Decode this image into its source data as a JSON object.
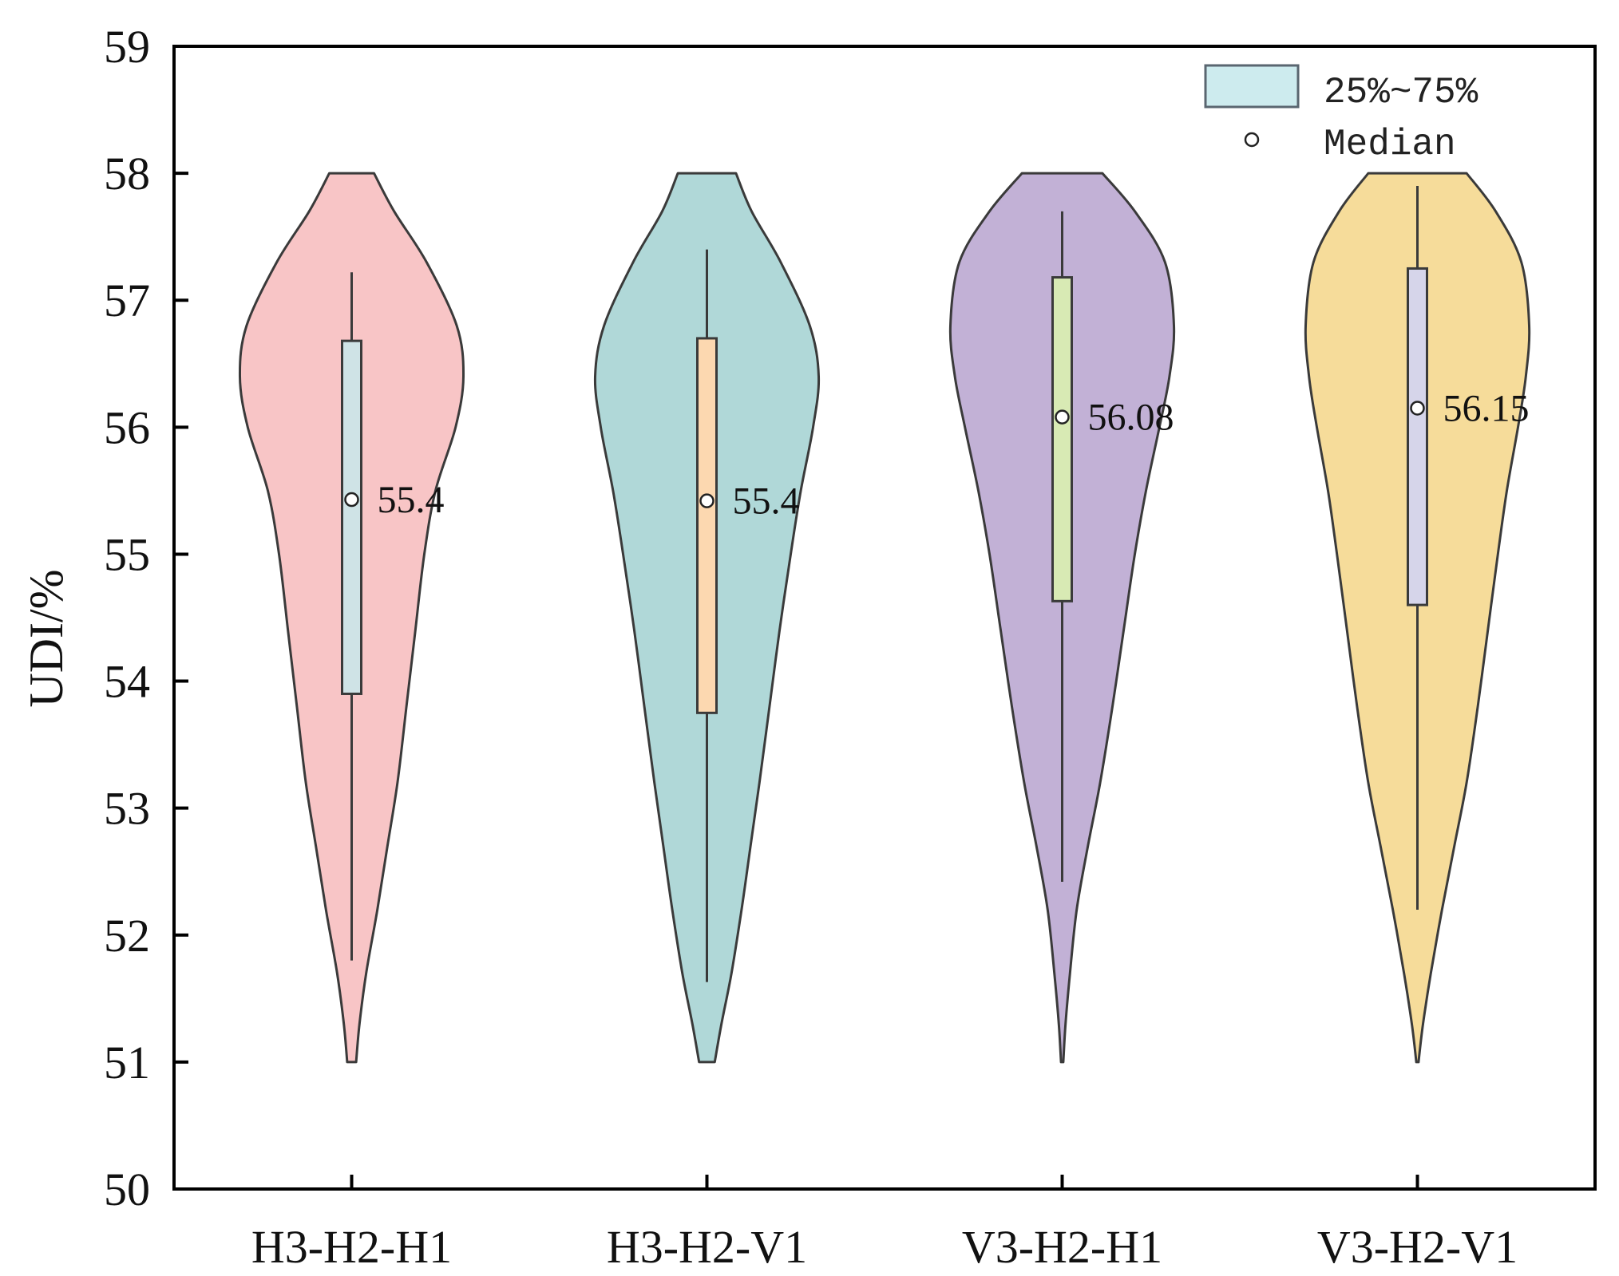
{
  "chart_data": {
    "type": "violin",
    "title": "",
    "xlabel": "",
    "ylabel": "UDI/%",
    "ylim": [
      50,
      59
    ],
    "yticks": [
      50,
      51,
      52,
      53,
      54,
      55,
      56,
      57,
      58,
      59
    ],
    "categories": [
      "H3-H2-H1",
      "H3-H2-V1",
      "V3-H2-H1",
      "V3-H2-V1"
    ],
    "legend": {
      "position": "top-right",
      "items": [
        {
          "label": "25%~75%",
          "kind": "box",
          "color": "#cdebee"
        },
        {
          "label": "Median",
          "kind": "marker"
        }
      ]
    },
    "series": [
      {
        "name": "H3-H2-H1",
        "violin_color": "#f8c5c6",
        "box_color": "#cfe3e6",
        "range": [
          51.0,
          58.0
        ],
        "q1": 53.9,
        "q3": 56.68,
        "whisker_low": 51.8,
        "whisker_high": 57.22,
        "median": 55.43,
        "median_label": "55.4",
        "density": [
          [
            51.0,
            0.04
          ],
          [
            51.3,
            0.07
          ],
          [
            51.7,
            0.13
          ],
          [
            52.2,
            0.23
          ],
          [
            52.7,
            0.32
          ],
          [
            53.2,
            0.41
          ],
          [
            53.8,
            0.49
          ],
          [
            54.4,
            0.57
          ],
          [
            55.0,
            0.65
          ],
          [
            55.5,
            0.75
          ],
          [
            56.0,
            0.93
          ],
          [
            56.4,
            1.0
          ],
          [
            56.8,
            0.94
          ],
          [
            57.3,
            0.67
          ],
          [
            57.7,
            0.38
          ],
          [
            58.0,
            0.2
          ]
        ]
      },
      {
        "name": "H3-H2-V1",
        "violin_color": "#b0d8d8",
        "box_color": "#fcd8b0",
        "range": [
          51.0,
          58.0
        ],
        "q1": 53.75,
        "q3": 56.7,
        "whisker_low": 51.63,
        "whisker_high": 57.4,
        "median": 55.42,
        "median_label": "55.4",
        "density": [
          [
            51.0,
            0.07
          ],
          [
            51.3,
            0.13
          ],
          [
            51.7,
            0.22
          ],
          [
            52.2,
            0.31
          ],
          [
            52.7,
            0.39
          ],
          [
            53.2,
            0.47
          ],
          [
            53.8,
            0.56
          ],
          [
            54.4,
            0.65
          ],
          [
            55.0,
            0.75
          ],
          [
            55.5,
            0.84
          ],
          [
            56.0,
            0.95
          ],
          [
            56.4,
            1.0
          ],
          [
            56.8,
            0.92
          ],
          [
            57.3,
            0.66
          ],
          [
            57.7,
            0.4
          ],
          [
            58.0,
            0.26
          ]
        ]
      },
      {
        "name": "V3-H2-H1",
        "violin_color": "#c2b1d6",
        "box_color": "#d8eab4",
        "range": [
          51.0,
          58.0
        ],
        "q1": 54.63,
        "q3": 57.18,
        "whisker_low": 52.42,
        "whisker_high": 57.7,
        "median": 56.08,
        "median_label": "56.08",
        "density": [
          [
            51.0,
            0.01
          ],
          [
            51.3,
            0.03
          ],
          [
            51.7,
            0.07
          ],
          [
            52.2,
            0.13
          ],
          [
            52.7,
            0.23
          ],
          [
            53.2,
            0.34
          ],
          [
            53.8,
            0.45
          ],
          [
            54.4,
            0.55
          ],
          [
            55.0,
            0.65
          ],
          [
            55.5,
            0.75
          ],
          [
            56.0,
            0.87
          ],
          [
            56.4,
            0.96
          ],
          [
            56.8,
            1.0
          ],
          [
            57.3,
            0.92
          ],
          [
            57.7,
            0.65
          ],
          [
            58.0,
            0.36
          ]
        ]
      },
      {
        "name": "V3-H2-V1",
        "violin_color": "#f6dc9a",
        "box_color": "#d6d5ea",
        "range": [
          51.0,
          58.0
        ],
        "q1": 54.6,
        "q3": 57.25,
        "whisker_low": 52.2,
        "whisker_high": 57.9,
        "median": 56.15,
        "median_label": "56.15",
        "density": [
          [
            51.0,
            0.01
          ],
          [
            51.3,
            0.05
          ],
          [
            51.7,
            0.12
          ],
          [
            52.2,
            0.22
          ],
          [
            52.7,
            0.33
          ],
          [
            53.2,
            0.44
          ],
          [
            53.8,
            0.54
          ],
          [
            54.4,
            0.63
          ],
          [
            55.0,
            0.72
          ],
          [
            55.5,
            0.8
          ],
          [
            56.0,
            0.9
          ],
          [
            56.4,
            0.97
          ],
          [
            56.8,
            1.0
          ],
          [
            57.3,
            0.93
          ],
          [
            57.7,
            0.7
          ],
          [
            58.0,
            0.44
          ]
        ]
      }
    ]
  }
}
